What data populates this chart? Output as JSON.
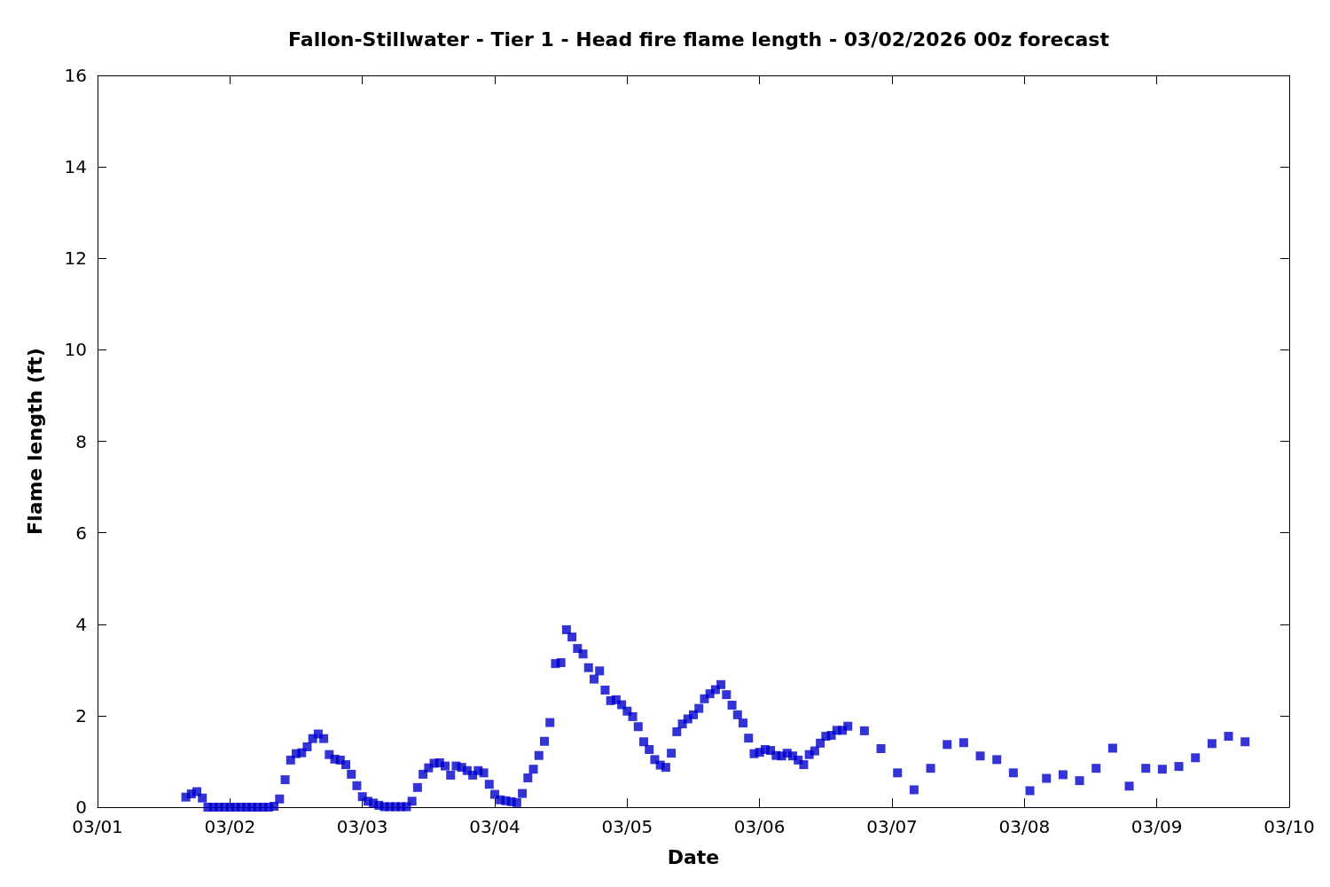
{
  "chart_data": {
    "type": "scatter",
    "title": "Fallon-Stillwater - Tier 1 - Head fire flame length - 03/02/2026 00z forecast",
    "xlabel": "Date",
    "ylabel": "Flame length (ft)",
    "x": [
      "2026-03-01T16:00",
      "2026-03-01T17:00",
      "2026-03-01T18:00",
      "2026-03-01T19:00",
      "2026-03-01T20:00",
      "2026-03-01T21:00",
      "2026-03-01T22:00",
      "2026-03-01T23:00",
      "2026-03-02T00:00",
      "2026-03-02T01:00",
      "2026-03-02T02:00",
      "2026-03-02T03:00",
      "2026-03-02T04:00",
      "2026-03-02T05:00",
      "2026-03-02T06:00",
      "2026-03-02T07:00",
      "2026-03-02T08:00",
      "2026-03-02T09:00",
      "2026-03-02T10:00",
      "2026-03-02T11:00",
      "2026-03-02T12:00",
      "2026-03-02T13:00",
      "2026-03-02T14:00",
      "2026-03-02T15:00",
      "2026-03-02T16:00",
      "2026-03-02T17:00",
      "2026-03-02T18:00",
      "2026-03-02T19:00",
      "2026-03-02T20:00",
      "2026-03-02T21:00",
      "2026-03-02T22:00",
      "2026-03-02T23:00",
      "2026-03-03T00:00",
      "2026-03-03T01:00",
      "2026-03-03T02:00",
      "2026-03-03T03:00",
      "2026-03-03T04:00",
      "2026-03-03T05:00",
      "2026-03-03T06:00",
      "2026-03-03T07:00",
      "2026-03-03T08:00",
      "2026-03-03T09:00",
      "2026-03-03T10:00",
      "2026-03-03T11:00",
      "2026-03-03T12:00",
      "2026-03-03T13:00",
      "2026-03-03T14:00",
      "2026-03-03T15:00",
      "2026-03-03T16:00",
      "2026-03-03T17:00",
      "2026-03-03T18:00",
      "2026-03-03T19:00",
      "2026-03-03T20:00",
      "2026-03-03T21:00",
      "2026-03-03T22:00",
      "2026-03-03T23:00",
      "2026-03-04T00:00",
      "2026-03-04T01:00",
      "2026-03-04T02:00",
      "2026-03-04T03:00",
      "2026-03-04T04:00",
      "2026-03-04T05:00",
      "2026-03-04T06:00",
      "2026-03-04T07:00",
      "2026-03-04T08:00",
      "2026-03-04T09:00",
      "2026-03-04T10:00",
      "2026-03-04T11:00",
      "2026-03-04T12:00",
      "2026-03-04T13:00",
      "2026-03-04T14:00",
      "2026-03-04T15:00",
      "2026-03-04T16:00",
      "2026-03-04T17:00",
      "2026-03-04T18:00",
      "2026-03-04T19:00",
      "2026-03-04T20:00",
      "2026-03-04T21:00",
      "2026-03-04T22:00",
      "2026-03-04T23:00",
      "2026-03-05T00:00",
      "2026-03-05T01:00",
      "2026-03-05T02:00",
      "2026-03-05T03:00",
      "2026-03-05T04:00",
      "2026-03-05T05:00",
      "2026-03-05T06:00",
      "2026-03-05T07:00",
      "2026-03-05T08:00",
      "2026-03-05T09:00",
      "2026-03-05T10:00",
      "2026-03-05T11:00",
      "2026-03-05T12:00",
      "2026-03-05T13:00",
      "2026-03-05T14:00",
      "2026-03-05T15:00",
      "2026-03-05T16:00",
      "2026-03-05T17:00",
      "2026-03-05T18:00",
      "2026-03-05T19:00",
      "2026-03-05T20:00",
      "2026-03-05T21:00",
      "2026-03-05T22:00",
      "2026-03-05T23:00",
      "2026-03-06T00:00",
      "2026-03-06T01:00",
      "2026-03-06T02:00",
      "2026-03-06T03:00",
      "2026-03-06T04:00",
      "2026-03-06T05:00",
      "2026-03-06T06:00",
      "2026-03-06T07:00",
      "2026-03-06T08:00",
      "2026-03-06T09:00",
      "2026-03-06T10:00",
      "2026-03-06T11:00",
      "2026-03-06T12:00",
      "2026-03-06T13:00",
      "2026-03-06T14:00",
      "2026-03-06T15:00",
      "2026-03-06T16:00",
      "2026-03-06T19:00",
      "2026-03-06T22:00",
      "2026-03-07T01:00",
      "2026-03-07T04:00",
      "2026-03-07T07:00",
      "2026-03-07T10:00",
      "2026-03-07T13:00",
      "2026-03-07T16:00",
      "2026-03-07T19:00",
      "2026-03-07T22:00",
      "2026-03-08T01:00",
      "2026-03-08T04:00",
      "2026-03-08T07:00",
      "2026-03-08T10:00",
      "2026-03-08T13:00",
      "2026-03-08T16:00",
      "2026-03-08T19:00",
      "2026-03-08T22:00",
      "2026-03-09T01:00",
      "2026-03-09T04:00",
      "2026-03-09T07:00",
      "2026-03-09T10:00",
      "2026-03-09T13:00",
      "2026-03-09T16:00"
    ],
    "series": [
      {
        "color": "#0000cc",
        "values": [
          0.22,
          0.29,
          0.34,
          0.2,
          0,
          0,
          0,
          0,
          0,
          0,
          0,
          0,
          0,
          0,
          0,
          0,
          0.02,
          0.18,
          0.6,
          1.03,
          1.17,
          1.19,
          1.32,
          1.5,
          1.6,
          1.5,
          1.15,
          1.05,
          1.03,
          0.93,
          0.72,
          0.47,
          0.23,
          0.13,
          0.09,
          0.04,
          0.01,
          0.01,
          0.01,
          0.01,
          0.01,
          0.13,
          0.43,
          0.72,
          0.86,
          0.96,
          0.97,
          0.9,
          0.7,
          0.9,
          0.87,
          0.8,
          0.7,
          0.8,
          0.75,
          0.5,
          0.28,
          0.16,
          0.14,
          0.12,
          0.1,
          0.3,
          0.64,
          0.83,
          1.13,
          1.44,
          1.85,
          3.14,
          3.16,
          3.88,
          3.72,
          3.47,
          3.35,
          3.05,
          2.8,
          2.98,
          2.56,
          2.33,
          2.35,
          2.24,
          2.1,
          1.98,
          1.76,
          1.43,
          1.26,
          1.04,
          0.92,
          0.87,
          1.18,
          1.65,
          1.82,
          1.93,
          2.02,
          2.16,
          2.37,
          2.48,
          2.57,
          2.68,
          2.46,
          2.23,
          2.02,
          1.84,
          1.51,
          1.17,
          1.2,
          1.26,
          1.24,
          1.13,
          1.12,
          1.18,
          1.12,
          1.03,
          0.93,
          1.15,
          1.23,
          1.4,
          1.55,
          1.57,
          1.68,
          1.68,
          1.77,
          1.67,
          1.28,
          0.75,
          0.38,
          0.85,
          1.37,
          1.41,
          1.12,
          1.04,
          0.75,
          0.36,
          0.63,
          0.71,
          0.58,
          0.85,
          1.29,
          0.46,
          0.85,
          0.83,
          0.89,
          1.08,
          1.39,
          1.55,
          1.43
        ]
      }
    ],
    "marker": "square",
    "grid": false,
    "xlim": [
      "2026-03-01",
      "2026-03-10"
    ],
    "xticks": [
      {
        "value": "2026-03-01",
        "label": "03/01"
      },
      {
        "value": "2026-03-02",
        "label": "03/02"
      },
      {
        "value": "2026-03-03",
        "label": "03/03"
      },
      {
        "value": "2026-03-04",
        "label": "03/04"
      },
      {
        "value": "2026-03-05",
        "label": "03/05"
      },
      {
        "value": "2026-03-06",
        "label": "03/06"
      },
      {
        "value": "2026-03-07",
        "label": "03/07"
      },
      {
        "value": "2026-03-08",
        "label": "03/08"
      },
      {
        "value": "2026-03-09",
        "label": "03/09"
      },
      {
        "value": "2026-03-10",
        "label": "03/10"
      }
    ],
    "ylim": [
      0,
      16
    ],
    "yticks": [
      0,
      2,
      4,
      6,
      8,
      10,
      12,
      14,
      16
    ]
  }
}
